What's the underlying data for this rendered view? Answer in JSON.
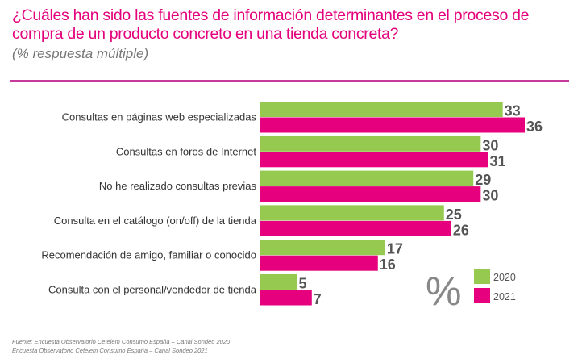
{
  "chart_data": {
    "type": "bar",
    "orientation": "horizontal",
    "title": "¿Cuáles han sido las fuentes de información determinantes en el proceso de compra de un producto concreto en una tienda concreta?",
    "subtitle": "(% respuesta múltiple)",
    "unit_symbol": "%",
    "categories": [
      "Consultas en páginas web especializadas",
      "Consultas en foros de Internet",
      "No he realizado consultas previas",
      "Consulta en el catálogo (on/off) de la tienda",
      "Recomendación de amigo, familiar o conocido",
      "Consulta con el personal/vendedor de tienda"
    ],
    "series": [
      {
        "name": "2020",
        "color": "#95c94f",
        "values": [
          33,
          30,
          29,
          25,
          17,
          5
        ]
      },
      {
        "name": "2021",
        "color": "#e6007e",
        "values": [
          36,
          31,
          30,
          26,
          16,
          7
        ]
      }
    ],
    "xlim": [
      0,
      36
    ],
    "grid": false,
    "legend_position": "bottom-right"
  },
  "source": {
    "line1": "Fuente: Encuesta Observatorio Cetelem Consumo España – Canal Sondeo 2020",
    "line2": "Encuesta Observatorio Cetelem Consumo España – Canal Sondeo 2021"
  }
}
